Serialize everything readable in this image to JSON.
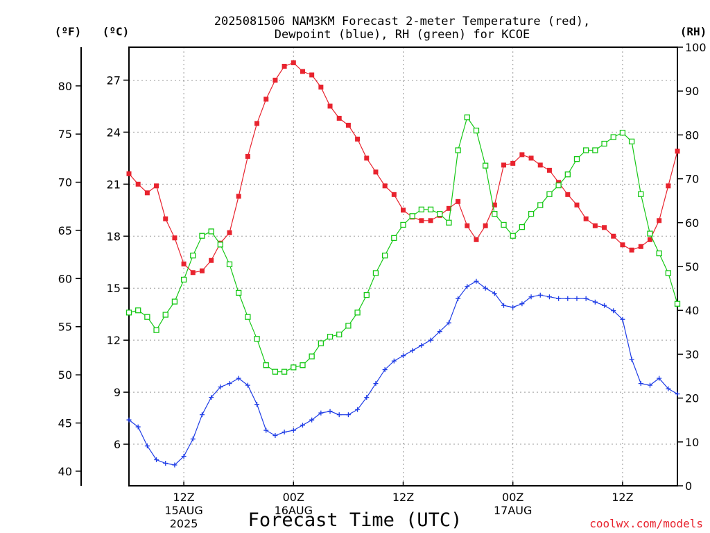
{
  "title_line1": "2025081506 NAM3KM Forecast 2-meter Temperature (red),",
  "title_line2": "Dewpoint (blue), RH (green) for KCOE",
  "axis_units": {
    "fahrenheit": "(ºF)",
    "celsius": "(ºC)",
    "rh": "(RH)"
  },
  "xlabel": "Forecast Time (UTC)",
  "credit": "coolwx.com/models",
  "colors": {
    "temperature": "#e8232e",
    "dewpoint": "#1e3ce6",
    "rh": "#16c816",
    "grid": "#999999",
    "credit": "#e8232e"
  },
  "chart_data": {
    "type": "line",
    "title": "2025081506 NAM3KM Forecast 2-meter Temperature (red), Dewpoint (blue), RH (green) for KCOE",
    "xlabel": "Forecast Time (UTC)",
    "x_unit": "forecast hour from 2025-08-15 06Z",
    "xlim": [
      0,
      60
    ],
    "x_ticks": [
      {
        "hour": 6,
        "label": "12Z",
        "date": "15AUG",
        "year": "2025"
      },
      {
        "hour": 18,
        "label": "00Z",
        "date": "16AUG",
        "year": ""
      },
      {
        "hour": 30,
        "label": "12Z",
        "date": "",
        "year": ""
      },
      {
        "hour": 42,
        "label": "00Z",
        "date": "17AUG",
        "year": ""
      },
      {
        "hour": 54,
        "label": "12Z",
        "date": "",
        "year": ""
      }
    ],
    "celsius_axis": {
      "ylim": [
        3.6,
        28.9
      ],
      "ticks": [
        6,
        9,
        12,
        15,
        18,
        21,
        24,
        27
      ]
    },
    "fahrenheit_axis": {
      "ticks": [
        40,
        45,
        50,
        55,
        60,
        65,
        70,
        75,
        80
      ]
    },
    "rh_axis": {
      "ylim": [
        0,
        100
      ],
      "ticks": [
        0,
        10,
        20,
        30,
        40,
        50,
        60,
        70,
        80,
        90,
        100
      ]
    },
    "grid": true,
    "series": [
      {
        "name": "Temperature",
        "marker": "filled-square",
        "axis": "celsius",
        "x": [
          0,
          1,
          2,
          3,
          4,
          5,
          6,
          7,
          8,
          9,
          10,
          11,
          12,
          13,
          14,
          15,
          16,
          17,
          18,
          19,
          20,
          21,
          22,
          23,
          24,
          25,
          26,
          27,
          28,
          29,
          30,
          31,
          32,
          33,
          34,
          35,
          36,
          37,
          38,
          39,
          40,
          41,
          42,
          43,
          44,
          45,
          46,
          47,
          48,
          49,
          50,
          51,
          52,
          53,
          54,
          55,
          56,
          57,
          58,
          59,
          60
        ],
        "values": [
          21.6,
          21.0,
          20.5,
          20.9,
          19.0,
          17.9,
          16.4,
          15.9,
          16.0,
          16.6,
          17.6,
          18.2,
          20.3,
          22.6,
          24.5,
          25.9,
          27.0,
          27.8,
          28.0,
          27.5,
          27.3,
          26.6,
          25.5,
          24.8,
          24.4,
          23.6,
          22.5,
          21.7,
          20.9,
          20.4,
          19.5,
          19.1,
          18.9,
          18.9,
          19.2,
          19.6,
          20.0,
          18.6,
          17.8,
          18.6,
          19.8,
          22.1,
          22.2,
          22.7,
          22.5,
          22.1,
          21.8,
          21.1,
          20.4,
          19.8,
          19.0,
          18.6,
          18.5,
          18.0,
          17.5,
          17.2,
          17.4,
          17.8,
          18.9,
          20.9,
          22.9
        ]
      },
      {
        "name": "Dewpoint",
        "marker": "plus",
        "axis": "celsius",
        "x": [
          0,
          1,
          2,
          3,
          4,
          5,
          6,
          7,
          8,
          9,
          10,
          11,
          12,
          13,
          14,
          15,
          16,
          17,
          18,
          19,
          20,
          21,
          22,
          23,
          24,
          25,
          26,
          27,
          28,
          29,
          30,
          31,
          32,
          33,
          34,
          35,
          36,
          37,
          38,
          39,
          40,
          41,
          42,
          43,
          44,
          45,
          46,
          47,
          48,
          49,
          50,
          51,
          52,
          53,
          54,
          55,
          56,
          57,
          58,
          59,
          60
        ],
        "values": [
          7.4,
          7.0,
          5.9,
          5.1,
          4.9,
          4.8,
          5.3,
          6.3,
          7.7,
          8.7,
          9.3,
          9.5,
          9.8,
          9.4,
          8.3,
          6.8,
          6.5,
          6.7,
          6.8,
          7.1,
          7.4,
          7.8,
          7.9,
          7.7,
          7.7,
          8.0,
          8.7,
          9.5,
          10.3,
          10.8,
          11.1,
          11.4,
          11.7,
          12.0,
          12.5,
          13.0,
          14.4,
          15.1,
          15.4,
          15.0,
          14.7,
          14.0,
          13.9,
          14.1,
          14.5,
          14.6,
          14.5,
          14.4,
          14.4,
          14.4,
          14.4,
          14.2,
          14.0,
          13.7,
          13.2,
          10.9,
          9.5,
          9.4,
          9.8,
          9.2,
          8.9
        ]
      },
      {
        "name": "RH",
        "marker": "open-square",
        "axis": "rh",
        "x": [
          0,
          1,
          2,
          3,
          4,
          5,
          6,
          7,
          8,
          9,
          10,
          11,
          12,
          13,
          14,
          15,
          16,
          17,
          18,
          19,
          20,
          21,
          22,
          23,
          24,
          25,
          26,
          27,
          28,
          29,
          30,
          31,
          32,
          33,
          34,
          35,
          36,
          37,
          38,
          39,
          40,
          41,
          42,
          43,
          44,
          45,
          46,
          47,
          48,
          49,
          50,
          51,
          52,
          53,
          54,
          55,
          56,
          57,
          58,
          59,
          60
        ],
        "values": [
          39.5,
          40,
          38.5,
          35.5,
          39,
          42,
          47,
          52.5,
          57,
          58,
          55,
          50.5,
          44,
          38.5,
          33.5,
          27.5,
          26,
          26,
          27,
          27.5,
          29.5,
          32.5,
          34,
          34.5,
          36.5,
          39.5,
          43.5,
          48.5,
          52.5,
          56.5,
          59.5,
          61.5,
          63,
          63,
          62,
          60,
          76.5,
          84,
          81,
          73,
          62,
          59.5,
          57,
          59,
          62,
          64,
          66.5,
          68.5,
          71,
          74.5,
          76.5,
          76.5,
          78,
          79.5,
          80.5,
          78.5,
          66.5,
          57.5,
          53,
          48.5,
          41.5
        ]
      }
    ]
  }
}
